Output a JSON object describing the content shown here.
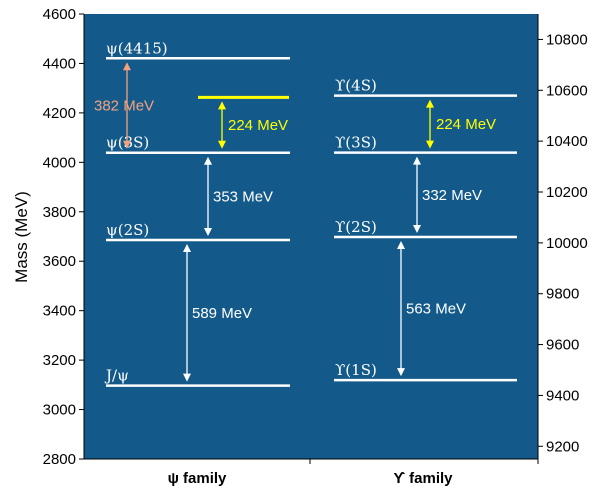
{
  "chart_data": {
    "type": "level-diagram",
    "ylabel": "Mass (MeV)",
    "left_axis": {
      "ylim": [
        2800,
        4600
      ],
      "ticks": [
        2800,
        3000,
        3200,
        3400,
        3600,
        3800,
        4000,
        4200,
        4400,
        4600
      ]
    },
    "right_axis": {
      "ylim": [
        9150,
        10900
      ],
      "ticks": [
        9200,
        9400,
        9600,
        9800,
        10000,
        10200,
        10400,
        10600,
        10800
      ]
    },
    "colors": {
      "background": "#135a8a",
      "level": "#ffffff",
      "orange": "#f4a27e",
      "yellow": "#ffff00",
      "white": "#ffffff"
    },
    "families": [
      {
        "name": "ψ family",
        "axis": "left",
        "levels": [
          {
            "label": "J/ψ",
            "mass": 3097,
            "color": "white"
          },
          {
            "label": "ψ(2S)",
            "mass": 3686,
            "color": "white"
          },
          {
            "label": "ψ(3S)",
            "mass": 4039,
            "color": "white"
          },
          {
            "label": "ψ(4415)",
            "mass": 4421,
            "color": "white"
          },
          {
            "label": "",
            "mass": 4263,
            "color": "yellow"
          }
        ],
        "gaps": [
          {
            "from": 3097,
            "to": 3686,
            "label": "589 MeV",
            "color": "white"
          },
          {
            "from": 3686,
            "to": 4039,
            "label": "353 MeV",
            "color": "white"
          },
          {
            "from": 4039,
            "to": 4263,
            "label": "224 MeV",
            "color": "yellow"
          },
          {
            "from": 4039,
            "to": 4421,
            "label": "382 MeV",
            "color": "orange"
          }
        ]
      },
      {
        "name": "ϒ family",
        "axis": "right",
        "levels": [
          {
            "label": "ϒ(1S)",
            "mass": 9460,
            "color": "white"
          },
          {
            "label": "ϒ(2S)",
            "mass": 10023,
            "color": "white"
          },
          {
            "label": "ϒ(3S)",
            "mass": 10355,
            "color": "white"
          },
          {
            "label": "ϒ(4S)",
            "mass": 10579,
            "color": "white"
          }
        ],
        "gaps": [
          {
            "from": 9460,
            "to": 10023,
            "label": "563 MeV",
            "color": "white"
          },
          {
            "from": 10023,
            "to": 10355,
            "label": "332 MeV",
            "color": "white"
          },
          {
            "from": 10355,
            "to": 10579,
            "label": "224 MeV",
            "color": "yellow"
          }
        ]
      }
    ]
  }
}
